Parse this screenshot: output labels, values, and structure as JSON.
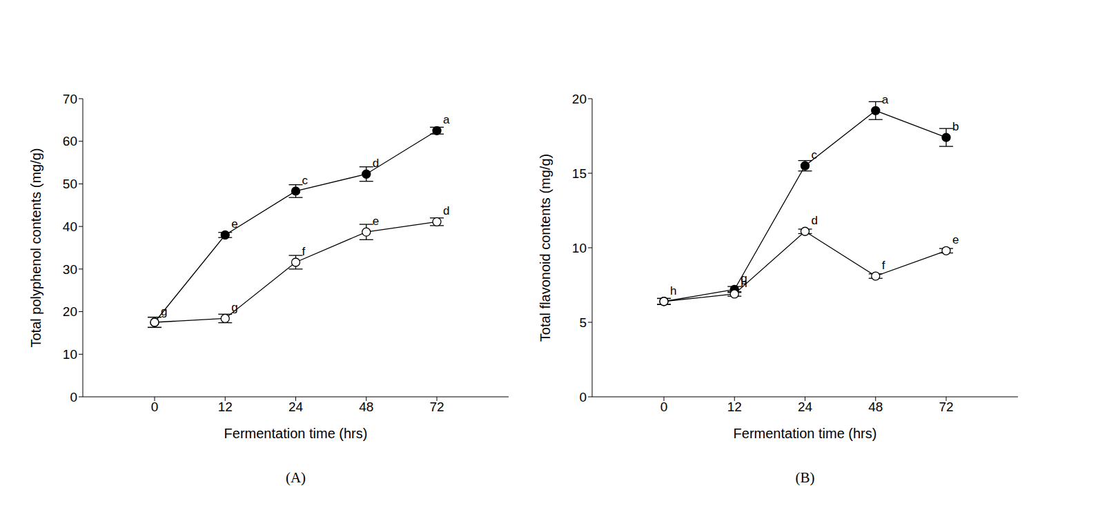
{
  "chart_data": [
    {
      "type": "line",
      "title": "(A)",
      "x_label": "Fermentation time (hrs)",
      "y_label": "Total polyphenol contents (mg/g)",
      "categories": [
        "0",
        "12",
        "24",
        "48",
        "72"
      ],
      "ylim": [
        0,
        70
      ],
      "yticks": [
        0,
        10,
        20,
        30,
        40,
        50,
        60,
        70
      ],
      "series": [
        {
          "color": "#000000",
          "marker": "filled",
          "values": [
            17.5,
            38.0,
            48.3,
            52.3,
            62.5
          ],
          "error": [
            1.2,
            0.6,
            1.5,
            1.7,
            0.8
          ],
          "letters": [
            null,
            "e",
            "c",
            "d",
            "a"
          ]
        },
        {
          "color": "#000000",
          "marker": "open",
          "values": [
            17.5,
            18.4,
            31.6,
            38.7,
            41.1
          ],
          "error": [
            1.2,
            1.0,
            1.6,
            1.8,
            0.9
          ],
          "letters": [
            "g",
            "g",
            "f",
            "e",
            "d"
          ]
        }
      ]
    },
    {
      "type": "line",
      "title": "(B)",
      "x_label": "Fermentation time (hrs)",
      "y_label": "Total flavonoid contents (mg/g)",
      "categories": [
        "0",
        "12",
        "24",
        "48",
        "72"
      ],
      "ylim": [
        0,
        20
      ],
      "yticks": [
        0,
        5,
        10,
        15,
        20
      ],
      "series": [
        {
          "color": "#000000",
          "marker": "filled",
          "values": [
            6.4,
            7.2,
            15.5,
            19.2,
            17.4
          ],
          "error": [
            0.2,
            0.2,
            0.35,
            0.6,
            0.6
          ],
          "letters": [
            null,
            "g",
            "c",
            "a",
            "b"
          ]
        },
        {
          "color": "#000000",
          "marker": "open",
          "values": [
            6.4,
            6.9,
            11.1,
            8.1,
            9.8
          ],
          "error": [
            0.2,
            0.15,
            0.15,
            0.15,
            0.15
          ],
          "letters": [
            "h",
            "h",
            "d",
            "f",
            "e"
          ]
        }
      ]
    }
  ]
}
